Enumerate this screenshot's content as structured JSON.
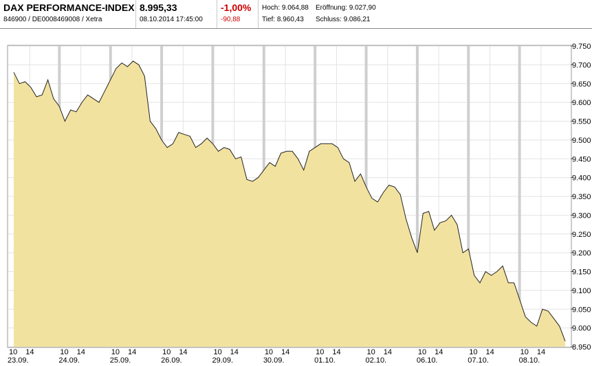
{
  "header": {
    "name": "DAX PERFORMANCE-INDEX",
    "ids": "846900 / DE0008469008 / Xetra",
    "price": "8.995,33",
    "datetime": "08.10.2014 17:45:00",
    "change_pct": "-1,00%",
    "change_abs": "-90,88",
    "high": "Hoch: 9.064,88",
    "open": "Eröffnung: 9.027,90",
    "low": "Tief: 8.960,43",
    "close": "Schluss: 9.086,21"
  },
  "colors": {
    "fill": "#f2e2a0",
    "line": "#222222",
    "neg": "#cc0000",
    "grid": "#e3e3e3",
    "daysep": "#cfcfcf"
  },
  "chart_data": {
    "type": "area",
    "ylim": [
      8950,
      9750
    ],
    "yticks": [
      8950,
      9000,
      9050,
      9100,
      9150,
      9200,
      9250,
      9300,
      9350,
      9400,
      9450,
      9500,
      9550,
      9600,
      9650,
      9700,
      9750
    ],
    "ytick_labels": [
      "8.950",
      "9.000",
      "9.050",
      "9.100",
      "9.150",
      "9.200",
      "9.250",
      "9.300",
      "9.350",
      "9.400",
      "9.450",
      "9.500",
      "9.550",
      "9.600",
      "9.650",
      "9.700",
      "9.750"
    ],
    "days": [
      "23.09.",
      "24.09.",
      "25.09.",
      "26.09.",
      "29.09.",
      "30.09.",
      "01.10.",
      "02.10.",
      "06.10.",
      "07.10.",
      "08.10."
    ],
    "hour_labels": [
      "10",
      "14"
    ],
    "values": [
      9680,
      9650,
      9655,
      9640,
      9615,
      9620,
      9660,
      9610,
      9590,
      9550,
      9580,
      9575,
      9600,
      9620,
      9610,
      9600,
      9630,
      9660,
      9690,
      9705,
      9695,
      9710,
      9700,
      9670,
      9550,
      9530,
      9500,
      9480,
      9490,
      9520,
      9515,
      9510,
      9480,
      9490,
      9505,
      9490,
      9470,
      9480,
      9475,
      9450,
      9455,
      9395,
      9390,
      9400,
      9420,
      9440,
      9430,
      9465,
      9470,
      9470,
      9450,
      9420,
      9470,
      9480,
      9490,
      9490,
      9490,
      9480,
      9450,
      9440,
      9390,
      9410,
      9375,
      9345,
      9335,
      9360,
      9380,
      9375,
      9355,
      9290,
      9240,
      9200,
      9305,
      9310,
      9260,
      9280,
      9285,
      9300,
      9275,
      9200,
      9210,
      9140,
      9120,
      9150,
      9140,
      9150,
      9165,
      9120,
      9120,
      9075,
      9030,
      9015,
      9005,
      9050,
      9045,
      9025,
      9005,
      8965
    ]
  }
}
